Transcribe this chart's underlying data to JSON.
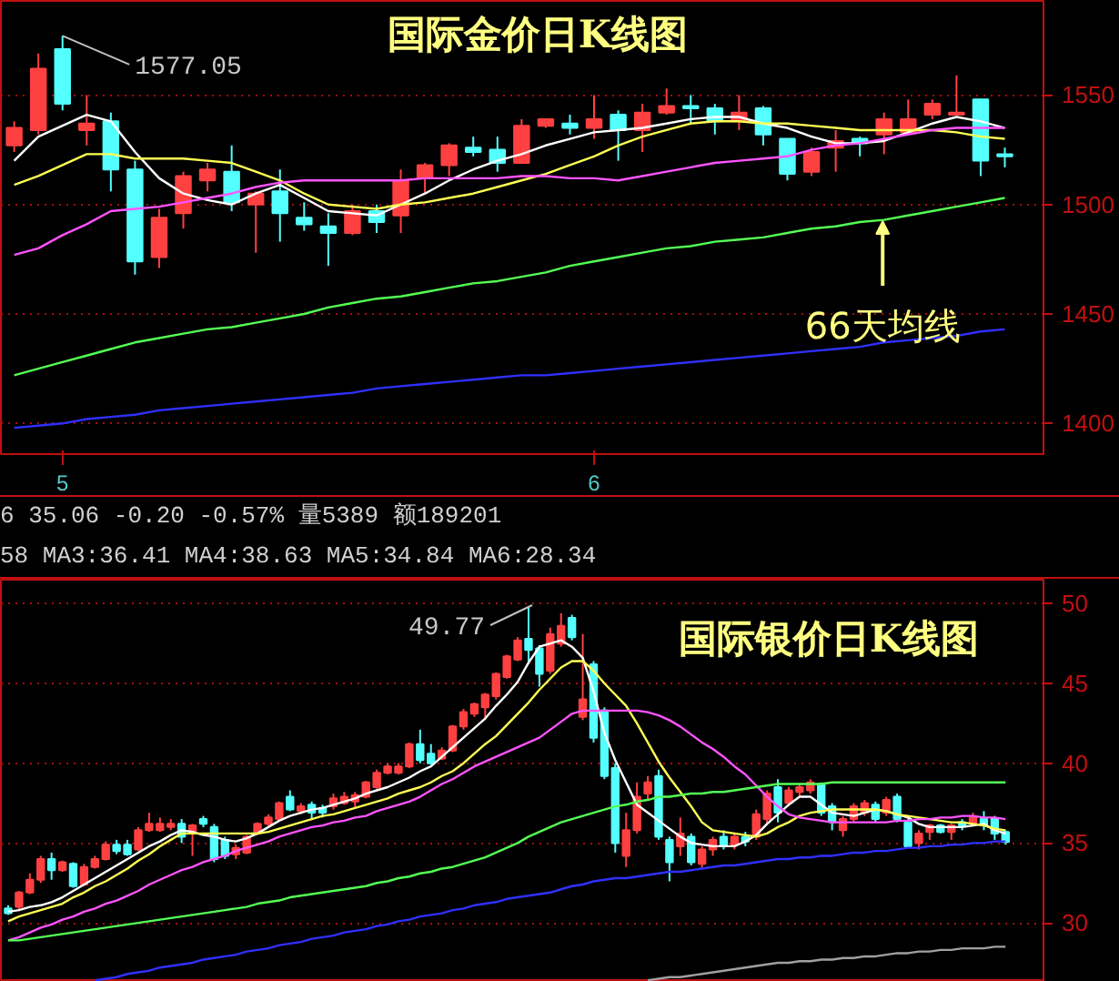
{
  "chart_data": [
    {
      "type": "candlestick",
      "title": "国际金价日K线图",
      "categories": [
        null,
        null,
        "5",
        null,
        null,
        null,
        null,
        null,
        null,
        null,
        null,
        null,
        null,
        null,
        null,
        null,
        null,
        null,
        null,
        null,
        null,
        null,
        null,
        null,
        "6",
        null,
        null,
        null,
        null,
        null,
        null,
        null,
        null,
        null,
        null,
        null,
        null,
        null,
        null,
        null,
        null,
        null
      ],
      "ohlc": [
        [
          1527,
          1538,
          1524,
          1535
        ],
        [
          1534,
          1569,
          1532,
          1562
        ],
        [
          1571,
          1577.05,
          1543,
          1546
        ],
        [
          1534,
          1550,
          1527,
          1537
        ],
        [
          1538,
          1542,
          1506,
          1516
        ],
        [
          1516,
          1520,
          1468,
          1474
        ],
        [
          1476,
          1498,
          1471,
          1494
        ],
        [
          1496,
          1515,
          1489,
          1513
        ],
        [
          1511,
          1519,
          1506,
          1516
        ],
        [
          1515,
          1527,
          1497,
          1501
        ],
        [
          1500,
          1506,
          1478,
          1505
        ],
        [
          1506,
          1516,
          1483,
          1496
        ],
        [
          1494,
          1501,
          1488,
          1491
        ],
        [
          1490,
          1496,
          1472,
          1487
        ],
        [
          1487,
          1500,
          1486,
          1497
        ],
        [
          1497,
          1500,
          1487,
          1492
        ],
        [
          1495,
          1516,
          1487,
          1511
        ],
        [
          1512,
          1519,
          1505,
          1518
        ],
        [
          1518,
          1528,
          1513,
          1527
        ],
        [
          1526,
          1531,
          1522,
          1524
        ],
        [
          1525,
          1531,
          1515,
          1519
        ],
        [
          1519,
          1539,
          1519,
          1536
        ],
        [
          1536,
          1539,
          1535,
          1539
        ],
        [
          1537,
          1541,
          1532,
          1535
        ],
        [
          1535,
          1550,
          1530,
          1539
        ],
        [
          1541,
          1543,
          1520,
          1534
        ],
        [
          1534,
          1546,
          1524,
          1542
        ],
        [
          1542,
          1553,
          1541,
          1545
        ],
        [
          1545,
          1550,
          1537,
          1544
        ],
        [
          1544,
          1546,
          1532,
          1538
        ],
        [
          1538,
          1550,
          1534,
          1542
        ],
        [
          1544,
          1545,
          1527,
          1532
        ],
        [
          1530,
          1530,
          1511,
          1514
        ],
        [
          1515,
          1526,
          1513,
          1524
        ],
        [
          1526,
          1534,
          1515,
          1529
        ],
        [
          1530,
          1531,
          1522,
          1528
        ],
        [
          1532,
          1542,
          1523,
          1539
        ],
        [
          1533,
          1548,
          1532,
          1539
        ],
        [
          1541,
          1548,
          1539,
          1546
        ],
        [
          1541,
          1559,
          1541,
          1542
        ],
        [
          1548,
          1548,
          1513,
          1520
        ],
        [
          1523,
          1526,
          1517,
          1522
        ]
      ],
      "series": [
        {
          "type": "line",
          "color": "#ffffff",
          "values": [
            1520,
            1531,
            1536,
            1541,
            1538,
            1524,
            1512,
            1505,
            1502,
            1500,
            1505,
            1509,
            1503,
            1497,
            1496,
            1495,
            1500,
            1505,
            1511,
            1516,
            1520,
            1523,
            1527,
            1530,
            1533,
            1534,
            1535,
            1537,
            1539,
            1540,
            1540,
            1537,
            1535,
            1531,
            1528,
            1528,
            1529,
            1533,
            1537,
            1540,
            1538,
            1535
          ]
        },
        {
          "type": "line",
          "color": "#ffff54",
          "values": [
            1509,
            1513,
            1518,
            1523,
            1523,
            1521,
            1521,
            1521,
            1520,
            1519,
            1515,
            1511,
            1505,
            1500,
            1499,
            1498,
            1500,
            1501,
            1503,
            1505,
            1508,
            1511,
            1514,
            1518,
            1522,
            1527,
            1531,
            1534,
            1537,
            1538,
            1538,
            1537,
            1537,
            1536,
            1535,
            1534,
            1534,
            1534,
            1534,
            1533,
            1531,
            1530
          ]
        },
        {
          "type": "line",
          "color": "#ff54ff",
          "values": [
            1477,
            1480,
            1486,
            1491,
            1497,
            1498,
            1499,
            1501,
            1503,
            1505,
            1508,
            1510,
            1511,
            1511,
            1511,
            1511,
            1511,
            1512,
            1512,
            1512,
            1512,
            1513,
            1513,
            1512,
            1512,
            1511,
            1513,
            1515,
            1517,
            1519,
            1520,
            1521,
            1522,
            1525,
            1527,
            1528,
            1530,
            1532,
            1534,
            1535,
            1535,
            1535
          ]
        },
        {
          "type": "line",
          "color": "#54ff54",
          "values": [
            1422,
            1425,
            1428,
            1431,
            1434,
            1437,
            1439,
            1441,
            1443,
            1444,
            1446,
            1448,
            1450,
            1453,
            1455,
            1457,
            1458,
            1460,
            1462,
            1464,
            1465,
            1467,
            1469,
            1472,
            1474,
            1476,
            1478,
            1480,
            1481,
            1483,
            1484,
            1485,
            1487,
            1489,
            1490,
            1492,
            1493,
            1495,
            1497,
            1499,
            1501,
            1503
          ]
        },
        {
          "type": "line",
          "color": "#3030ff",
          "values": [
            1398,
            1399,
            1400,
            1402,
            1403,
            1404,
            1406,
            1407,
            1408,
            1409,
            1410,
            1411,
            1412,
            1413,
            1414,
            1416,
            1417,
            1418,
            1419,
            1420,
            1421,
            1422,
            1422,
            1423,
            1424,
            1425,
            1426,
            1427,
            1428,
            1429,
            1430,
            1431,
            1432,
            1433,
            1434,
            1435,
            1437,
            1438,
            1439,
            1440,
            1442,
            1443
          ]
        }
      ],
      "annotations": [
        {
          "text": "1577.05",
          "x": "5",
          "y": 1577.05
        },
        {
          "text": "66天均线",
          "y": 1494
        }
      ],
      "ylim": [
        1386,
        1593
      ],
      "yticks": [
        1400,
        1450,
        1500,
        1550
      ],
      "grid": "y"
    },
    {
      "type": "candlestick",
      "title": "国际银价日K线图",
      "categories": [
        null,
        null,
        null,
        null,
        null,
        null,
        null,
        null,
        null,
        null,
        null,
        null,
        null,
        null,
        null,
        null,
        null,
        null,
        null,
        null,
        null,
        null,
        null,
        null,
        null,
        null,
        null,
        null,
        null,
        null,
        null,
        null,
        null,
        null,
        null,
        null,
        null,
        null,
        null,
        null,
        null,
        null,
        null,
        null,
        null,
        null,
        null,
        null,
        null,
        null,
        null,
        null,
        null,
        null,
        null,
        null,
        null,
        null,
        null,
        null,
        null,
        null,
        null,
        null,
        null,
        null,
        null,
        null,
        null,
        null,
        null,
        null,
        null,
        null,
        null,
        null,
        null,
        null,
        null,
        null,
        null,
        null,
        null,
        null,
        null,
        null,
        null,
        null,
        null,
        null,
        null,
        null,
        null
      ],
      "ohlc": [
        [
          30.9,
          31.1,
          30.5,
          30.6
        ],
        [
          31.0,
          32.0,
          30.8,
          31.9
        ],
        [
          31.9,
          33.1,
          31.8,
          32.7
        ],
        [
          32.7,
          34.2,
          32.5,
          34.0
        ],
        [
          34.0,
          34.4,
          32.7,
          33.3
        ],
        [
          33.3,
          33.9,
          33.2,
          33.8
        ],
        [
          33.7,
          33.8,
          32.2,
          32.3
        ],
        [
          32.4,
          33.7,
          32.3,
          33.5
        ],
        [
          33.5,
          34.2,
          33.4,
          34.0
        ],
        [
          34.0,
          35.1,
          33.9,
          34.9
        ],
        [
          34.9,
          35.2,
          34.3,
          34.5
        ],
        [
          34.9,
          35.2,
          34.2,
          34.3
        ],
        [
          34.6,
          36.0,
          34.5,
          35.8
        ],
        [
          35.8,
          36.9,
          35.7,
          36.2
        ],
        [
          35.8,
          36.6,
          35.7,
          36.2
        ],
        [
          36.0,
          36.5,
          35.8,
          36.2
        ],
        [
          36.2,
          36.5,
          35.0,
          35.4
        ],
        [
          35.7,
          36.2,
          34.2,
          36.1
        ],
        [
          36.5,
          36.7,
          36.0,
          36.2
        ],
        [
          36.0,
          36.2,
          33.8,
          34.0
        ],
        [
          35.2,
          35.4,
          34.0,
          34.2
        ],
        [
          34.3,
          34.9,
          34.0,
          34.7
        ],
        [
          34.4,
          35.5,
          34.3,
          35.4
        ],
        [
          35.6,
          36.3,
          35.5,
          36.2
        ],
        [
          36.2,
          36.8,
          36.1,
          36.6
        ],
        [
          36.5,
          37.6,
          36.4,
          37.5
        ],
        [
          37.9,
          38.3,
          37.0,
          37.1
        ],
        [
          37.0,
          37.5,
          36.8,
          37.3
        ],
        [
          37.4,
          37.6,
          36.5,
          36.9
        ],
        [
          37.2,
          37.4,
          36.6,
          36.9
        ],
        [
          37.3,
          38.1,
          37.1,
          37.8
        ],
        [
          37.5,
          38.2,
          37.4,
          37.9
        ],
        [
          37.6,
          38.2,
          37.2,
          38.0
        ],
        [
          37.9,
          38.9,
          37.8,
          38.8
        ],
        [
          38.5,
          39.6,
          38.4,
          39.4
        ],
        [
          39.4,
          40.0,
          39.3,
          39.8
        ],
        [
          39.4,
          40.0,
          39.3,
          39.8
        ],
        [
          39.8,
          41.3,
          39.7,
          41.2
        ],
        [
          41.2,
          42.1,
          40.0,
          40.2
        ],
        [
          40.6,
          41.2,
          39.9,
          40.0
        ],
        [
          40.3,
          41.0,
          40.2,
          40.8
        ],
        [
          40.8,
          42.4,
          40.7,
          42.3
        ],
        [
          42.3,
          43.4,
          42.1,
          43.2
        ],
        [
          43.1,
          43.8,
          42.9,
          43.7
        ],
        [
          43.5,
          44.4,
          42.7,
          44.3
        ],
        [
          44.2,
          45.7,
          44.0,
          45.6
        ],
        [
          45.4,
          46.8,
          45.3,
          46.7
        ],
        [
          46.5,
          47.9,
          46.4,
          47.7
        ],
        [
          47.8,
          49.77,
          46.2,
          47.1
        ],
        [
          47.2,
          47.4,
          44.8,
          45.6
        ],
        [
          45.8,
          48.5,
          45.6,
          48.1
        ],
        [
          47.5,
          49.4,
          47.3,
          48.6
        ],
        [
          49.1,
          49.3,
          47.7,
          47.9
        ],
        [
          42.9,
          48.1,
          42.7,
          44.0
        ],
        [
          46.2,
          46.4,
          41.3,
          41.6
        ],
        [
          43.3,
          43.5,
          39.0,
          39.2
        ],
        [
          39.7,
          40.0,
          34.4,
          35.0
        ],
        [
          34.2,
          36.9,
          33.5,
          35.8
        ],
        [
          35.8,
          38.8,
          35.6,
          37.9
        ],
        [
          38.1,
          39.2,
          37.7,
          38.8
        ],
        [
          39.2,
          39.6,
          35.2,
          35.4
        ],
        [
          35.2,
          35.4,
          32.6,
          33.8
        ],
        [
          34.8,
          36.6,
          34.2,
          35.6
        ],
        [
          35.4,
          35.6,
          33.6,
          33.8
        ],
        [
          33.7,
          34.8,
          33.4,
          34.6
        ],
        [
          34.6,
          35.4,
          34.2,
          35.2
        ],
        [
          35.4,
          35.8,
          34.6,
          34.8
        ],
        [
          34.9,
          35.6,
          34.6,
          35.4
        ],
        [
          35.4,
          35.7,
          34.8,
          35.1
        ],
        [
          35.4,
          37.1,
          35.2,
          36.8
        ],
        [
          36.5,
          38.3,
          36.2,
          38.1
        ],
        [
          38.5,
          39.0,
          36.3,
          36.9
        ],
        [
          37.5,
          38.5,
          37.3,
          38.3
        ],
        [
          38.2,
          38.7,
          37.9,
          38.5
        ],
        [
          38.3,
          39.0,
          38.1,
          38.8
        ],
        [
          38.7,
          38.8,
          36.7,
          36.9
        ],
        [
          37.3,
          37.5,
          35.8,
          36.3
        ],
        [
          35.8,
          36.7,
          35.4,
          36.5
        ],
        [
          36.5,
          37.5,
          36.3,
          37.3
        ],
        [
          36.9,
          37.7,
          36.7,
          37.5
        ],
        [
          37.4,
          37.6,
          36.3,
          36.5
        ],
        [
          36.9,
          37.9,
          36.7,
          37.7
        ],
        [
          37.9,
          38.1,
          36.3,
          36.5
        ],
        [
          36.3,
          36.5,
          34.7,
          34.8
        ],
        [
          35.0,
          35.8,
          34.6,
          35.6
        ],
        [
          35.7,
          36.2,
          35.2,
          36.1
        ],
        [
          36.1,
          36.2,
          35.6,
          35.7
        ],
        [
          35.7,
          36.2,
          35.2,
          36.1
        ],
        [
          36.3,
          36.5,
          35.8,
          36.1
        ],
        [
          36.2,
          36.9,
          36.1,
          36.6
        ],
        [
          36.5,
          37.0,
          35.8,
          36.1
        ],
        [
          36.5,
          36.7,
          35.2,
          35.6
        ],
        [
          35.7,
          35.8,
          34.9,
          35.06
        ]
      ],
      "series": [
        {
          "type": "line",
          "color": "#ffffff",
          "values": [
            30.7,
            30.8,
            31.0,
            31.1,
            31.3,
            31.6,
            32.0,
            32.4,
            32.8,
            33.2,
            33.6,
            34.0,
            34.4,
            34.8,
            35.1,
            35.5,
            35.8,
            35.7,
            35.5,
            35.4,
            35.2,
            35.1,
            35.3,
            35.6,
            36.0,
            36.4,
            36.7,
            36.9,
            37.1,
            37.2,
            37.4,
            37.6,
            37.8,
            38.1,
            38.3,
            38.5,
            38.8,
            39.1,
            39.5,
            39.8,
            40.4,
            41.0,
            41.6,
            42.2,
            42.8,
            43.6,
            44.3,
            45.1,
            46.3,
            47.3,
            47.5,
            47.7,
            47.3,
            46.6,
            44.5,
            41.9,
            40.2,
            38.8,
            37.4,
            36.9,
            36.4,
            35.9,
            35.4,
            35.0,
            34.9,
            34.8,
            34.8,
            34.8,
            35.1,
            35.5,
            36.2,
            36.8,
            37.4,
            37.9,
            37.9,
            37.4,
            36.9,
            36.8,
            36.7,
            36.9,
            37.1,
            37.0,
            36.8,
            36.6,
            36.2,
            36.0,
            36.0,
            36.0,
            36.0,
            36.1,
            36.2,
            35.8,
            35.6
          ]
        },
        {
          "type": "line",
          "color": "#ffff54",
          "values": [
            30.1,
            30.4,
            30.6,
            30.8,
            31.0,
            31.2,
            31.6,
            31.9,
            32.3,
            32.6,
            33.0,
            33.4,
            33.9,
            34.3,
            34.8,
            35.2,
            35.6,
            35.6,
            35.6,
            35.6,
            35.6,
            35.6,
            35.6,
            35.6,
            35.7,
            35.9,
            36.1,
            36.3,
            36.5,
            36.7,
            36.8,
            37.0,
            37.2,
            37.4,
            37.6,
            37.8,
            38.1,
            38.3,
            38.5,
            38.8,
            39.2,
            39.5,
            40.0,
            40.6,
            41.2,
            41.7,
            42.4,
            43.1,
            43.8,
            44.6,
            45.3,
            46.0,
            46.4,
            46.4,
            45.8,
            45.0,
            44.3,
            43.6,
            42.5,
            41.3,
            40.1,
            39.1,
            38.2,
            37.3,
            36.3,
            35.8,
            35.7,
            35.6,
            35.5,
            35.4,
            35.6,
            36.0,
            36.3,
            36.7,
            36.9,
            37.0,
            37.1,
            37.1,
            37.1,
            37.1,
            37.1,
            37.0,
            36.8,
            36.7,
            36.6,
            36.5,
            36.4,
            36.3,
            36.3,
            36.2,
            36.1,
            35.9,
            35.8
          ]
        },
        {
          "type": "line",
          "color": "#ff54ff",
          "values": [
            28.9,
            29.1,
            29.4,
            29.7,
            29.9,
            30.2,
            30.4,
            30.7,
            30.9,
            31.2,
            31.4,
            31.7,
            32.0,
            32.4,
            32.7,
            33.0,
            33.3,
            33.5,
            33.8,
            34.0,
            34.2,
            34.5,
            34.7,
            34.9,
            35.1,
            35.4,
            35.6,
            35.8,
            36.0,
            36.1,
            36.3,
            36.4,
            36.6,
            36.7,
            37.0,
            37.2,
            37.4,
            37.6,
            37.9,
            38.3,
            38.7,
            39.0,
            39.4,
            39.8,
            40.1,
            40.4,
            40.7,
            41.0,
            41.3,
            41.6,
            42.1,
            42.6,
            43.1,
            43.3,
            43.3,
            43.3,
            43.3,
            43.3,
            43.3,
            43.2,
            43.0,
            42.7,
            42.3,
            41.8,
            41.3,
            40.9,
            40.4,
            39.8,
            39.3,
            38.6,
            37.9,
            37.3,
            36.8,
            36.6,
            36.5,
            36.4,
            36.3,
            36.3,
            36.3,
            36.3,
            36.3,
            36.3,
            36.4,
            36.4,
            36.5,
            36.5,
            36.6,
            36.6,
            36.7,
            36.7,
            36.6,
            36.6,
            36.5
          ]
        },
        {
          "type": "line",
          "color": "#54ff54",
          "values": [
            28.9,
            28.9,
            29.0,
            29.1,
            29.2,
            29.3,
            29.4,
            29.5,
            29.6,
            29.7,
            29.8,
            29.9,
            30.0,
            30.1,
            30.2,
            30.3,
            30.4,
            30.5,
            30.6,
            30.7,
            30.8,
            30.9,
            31.0,
            31.2,
            31.3,
            31.4,
            31.6,
            31.7,
            31.8,
            31.9,
            32.0,
            32.1,
            32.2,
            32.3,
            32.5,
            32.6,
            32.8,
            32.9,
            33.1,
            33.2,
            33.4,
            33.5,
            33.7,
            33.9,
            34.1,
            34.4,
            34.7,
            35.0,
            35.4,
            35.7,
            36.0,
            36.3,
            36.5,
            36.7,
            36.9,
            37.1,
            37.3,
            37.4,
            37.6,
            37.7,
            37.9,
            37.9,
            38.0,
            38.1,
            38.1,
            38.2,
            38.2,
            38.3,
            38.4,
            38.5,
            38.6,
            38.7,
            38.7,
            38.7,
            38.7,
            38.7,
            38.8,
            38.8,
            38.8,
            38.8,
            38.8,
            38.8,
            38.8,
            38.8,
            38.8,
            38.8,
            38.8,
            38.8,
            38.8,
            38.8,
            38.8,
            38.8,
            38.8
          ]
        },
        {
          "type": "line",
          "color": "#3030ff",
          "values": [
            null,
            null,
            null,
            null,
            null,
            null,
            null,
            null,
            26.4,
            26.5,
            26.6,
            26.8,
            26.9,
            27.0,
            27.2,
            27.3,
            27.4,
            27.5,
            27.7,
            27.8,
            27.9,
            28.0,
            28.2,
            28.3,
            28.4,
            28.6,
            28.7,
            28.8,
            29.0,
            29.1,
            29.2,
            29.4,
            29.5,
            29.6,
            29.8,
            29.9,
            30.1,
            30.2,
            30.4,
            30.5,
            30.6,
            30.8,
            30.9,
            31.1,
            31.2,
            31.3,
            31.5,
            31.6,
            31.7,
            31.8,
            31.9,
            32.1,
            32.3,
            32.4,
            32.6,
            32.7,
            32.8,
            32.8,
            32.9,
            33.0,
            33.1,
            33.2,
            33.2,
            33.3,
            33.4,
            33.5,
            33.6,
            33.6,
            33.7,
            33.8,
            33.9,
            34.0,
            34.0,
            34.1,
            34.1,
            34.2,
            34.2,
            34.3,
            34.4,
            34.4,
            34.5,
            34.5,
            34.6,
            34.7,
            34.7,
            34.8,
            34.8,
            34.9,
            34.9,
            35.0,
            35.0,
            35.1,
            35.1
          ]
        },
        {
          "type": "line",
          "color": "#a0a0a0",
          "values": [
            null,
            null,
            null,
            null,
            null,
            null,
            null,
            null,
            null,
            null,
            null,
            null,
            null,
            null,
            null,
            null,
            null,
            null,
            null,
            null,
            null,
            null,
            null,
            null,
            null,
            null,
            null,
            null,
            null,
            null,
            null,
            null,
            null,
            null,
            null,
            null,
            null,
            null,
            null,
            null,
            null,
            null,
            null,
            null,
            null,
            null,
            null,
            null,
            null,
            null,
            null,
            null,
            null,
            null,
            null,
            null,
            null,
            null,
            null,
            26.4,
            26.5,
            26.6,
            26.6,
            26.7,
            26.8,
            26.9,
            27.0,
            27.1,
            27.2,
            27.3,
            27.4,
            27.5,
            27.5,
            27.6,
            27.6,
            27.7,
            27.7,
            27.8,
            27.8,
            27.9,
            27.9,
            28.0,
            28.1,
            28.1,
            28.2,
            28.2,
            28.3,
            28.3,
            28.4,
            28.4,
            28.4,
            28.5,
            28.5
          ]
        }
      ],
      "annotations": [
        "6 35.06  -0.20 -0.57% 量5389 额189201",
        "58 MA3:36.41 MA4:38.63 MA5:34.84 MA6:28.34",
        "49.77"
      ],
      "ylim": [
        26.3,
        51.5
      ],
      "yticks": [
        30,
        35,
        40,
        45,
        50
      ],
      "grid": "y",
      "tick_labels": "y"
    }
  ]
}
